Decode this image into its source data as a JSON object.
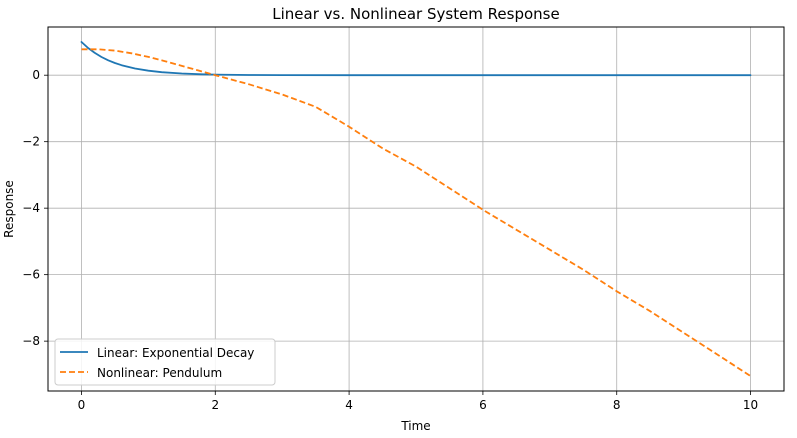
{
  "chart_data": {
    "type": "line",
    "title": "Linear vs. Nonlinear System Response",
    "xlabel": "Time",
    "ylabel": "Response",
    "xlim": [
      -0.5,
      10.5
    ],
    "ylim": [
      -9.5,
      1.45
    ],
    "xticks": [
      0,
      2,
      4,
      6,
      8,
      10
    ],
    "yticks": [
      -8,
      -6,
      -4,
      -2,
      0
    ],
    "xtick_labels": [
      "0",
      "2",
      "4",
      "6",
      "8",
      "10"
    ],
    "ytick_labels": [
      "−8",
      "−6",
      "−4",
      "−2",
      "0"
    ],
    "grid": true,
    "legend": "lower-left",
    "series": [
      {
        "name": "Linear: Exponential Decay",
        "color": "#1f77b4",
        "style": "solid",
        "x": [
          0,
          0.1,
          0.2,
          0.3,
          0.4,
          0.5,
          0.6,
          0.8,
          1.0,
          1.2,
          1.5,
          1.8,
          2.0,
          2.5,
          3.0,
          4.0,
          5.0,
          6.0,
          7.0,
          8.0,
          9.0,
          10.0
        ],
        "y": [
          1.0,
          0.819,
          0.67,
          0.549,
          0.449,
          0.368,
          0.301,
          0.202,
          0.135,
          0.091,
          0.05,
          0.027,
          0.018,
          0.007,
          0.002,
          0.0,
          0.0,
          0.0,
          0.0,
          0.0,
          0.0,
          0.0
        ]
      },
      {
        "name": "Nonlinear: Pendulum",
        "color": "#ff7f0e",
        "style": "dashed",
        "x": [
          0,
          0.25,
          0.5,
          0.75,
          1.0,
          1.25,
          1.5,
          1.75,
          2.0,
          2.5,
          3.0,
          3.5,
          4.0,
          4.5,
          5.0,
          5.5,
          6.0,
          6.5,
          7.0,
          7.5,
          8.0,
          8.5,
          9.0,
          9.5,
          10.0
        ],
        "y": [
          0.78,
          0.78,
          0.74,
          0.66,
          0.55,
          0.42,
          0.28,
          0.14,
          0.0,
          -0.27,
          -0.58,
          -0.95,
          -1.55,
          -2.2,
          -2.75,
          -3.4,
          -4.05,
          -4.65,
          -5.25,
          -5.85,
          -6.5,
          -7.1,
          -7.75,
          -8.4,
          -9.05
        ]
      }
    ]
  }
}
